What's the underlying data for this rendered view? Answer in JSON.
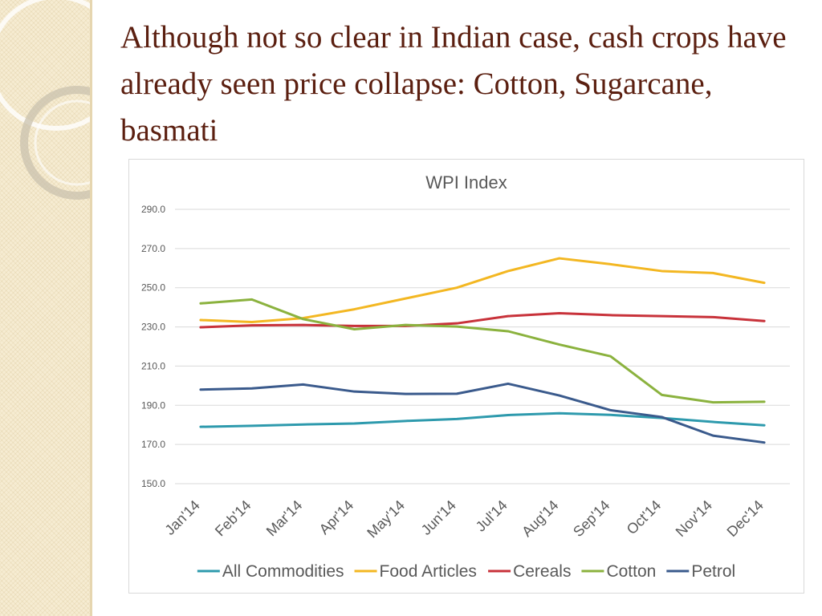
{
  "slide": {
    "title": "Although not so clear in Indian case, cash crops have already seen price collapse: Cotton, Sugarcane, basmati"
  },
  "chart_data": {
    "type": "line",
    "title": "WPI Index",
    "xlabel": "",
    "ylabel": "",
    "ylim": [
      150,
      290
    ],
    "yticks": [
      290.0,
      270.0,
      250.0,
      230.0,
      210.0,
      190.0,
      170.0,
      150.0
    ],
    "ytick_labels": [
      "290.0",
      "270.0",
      "250.0",
      "230.0",
      "210.0",
      "190.0",
      "170.0",
      "150.0"
    ],
    "categories": [
      "Jan'14",
      "Feb'14",
      "Mar'14",
      "Apr'14",
      "May'14",
      "Jun'14",
      "Jul'14",
      "Aug'14",
      "Sep'14",
      "Oct'14",
      "Nov'14",
      "Dec'14"
    ],
    "grid": true,
    "legend_position": "bottom",
    "series": [
      {
        "name": "All Commodities",
        "color": "#2e9aad",
        "values": [
          179.0,
          179.5,
          180.2,
          180.7,
          182.0,
          183.0,
          185.0,
          185.9,
          185.1,
          183.5,
          181.5,
          179.8
        ]
      },
      {
        "name": "Food Articles",
        "color": "#f3b722",
        "values": [
          233.5,
          232.5,
          234.5,
          239.0,
          244.5,
          250.0,
          258.5,
          265.0,
          262.0,
          258.5,
          257.5,
          252.5
        ]
      },
      {
        "name": "Cereals",
        "color": "#c8323a",
        "values": [
          229.8,
          230.8,
          231.0,
          230.5,
          230.5,
          231.8,
          235.5,
          237.0,
          236.0,
          235.5,
          235.0,
          233.0
        ]
      },
      {
        "name": "Cotton",
        "color": "#8bb23e",
        "values": [
          242.0,
          244.0,
          234.0,
          228.8,
          231.0,
          230.2,
          227.8,
          221.0,
          215.0,
          195.3,
          191.5,
          191.8
        ]
      },
      {
        "name": "Petrol",
        "color": "#3a5a8c",
        "values": [
          198.0,
          198.6,
          200.6,
          197.0,
          195.8,
          195.9,
          201.0,
          195.0,
          187.5,
          184.0,
          174.5,
          171.0
        ]
      }
    ]
  }
}
